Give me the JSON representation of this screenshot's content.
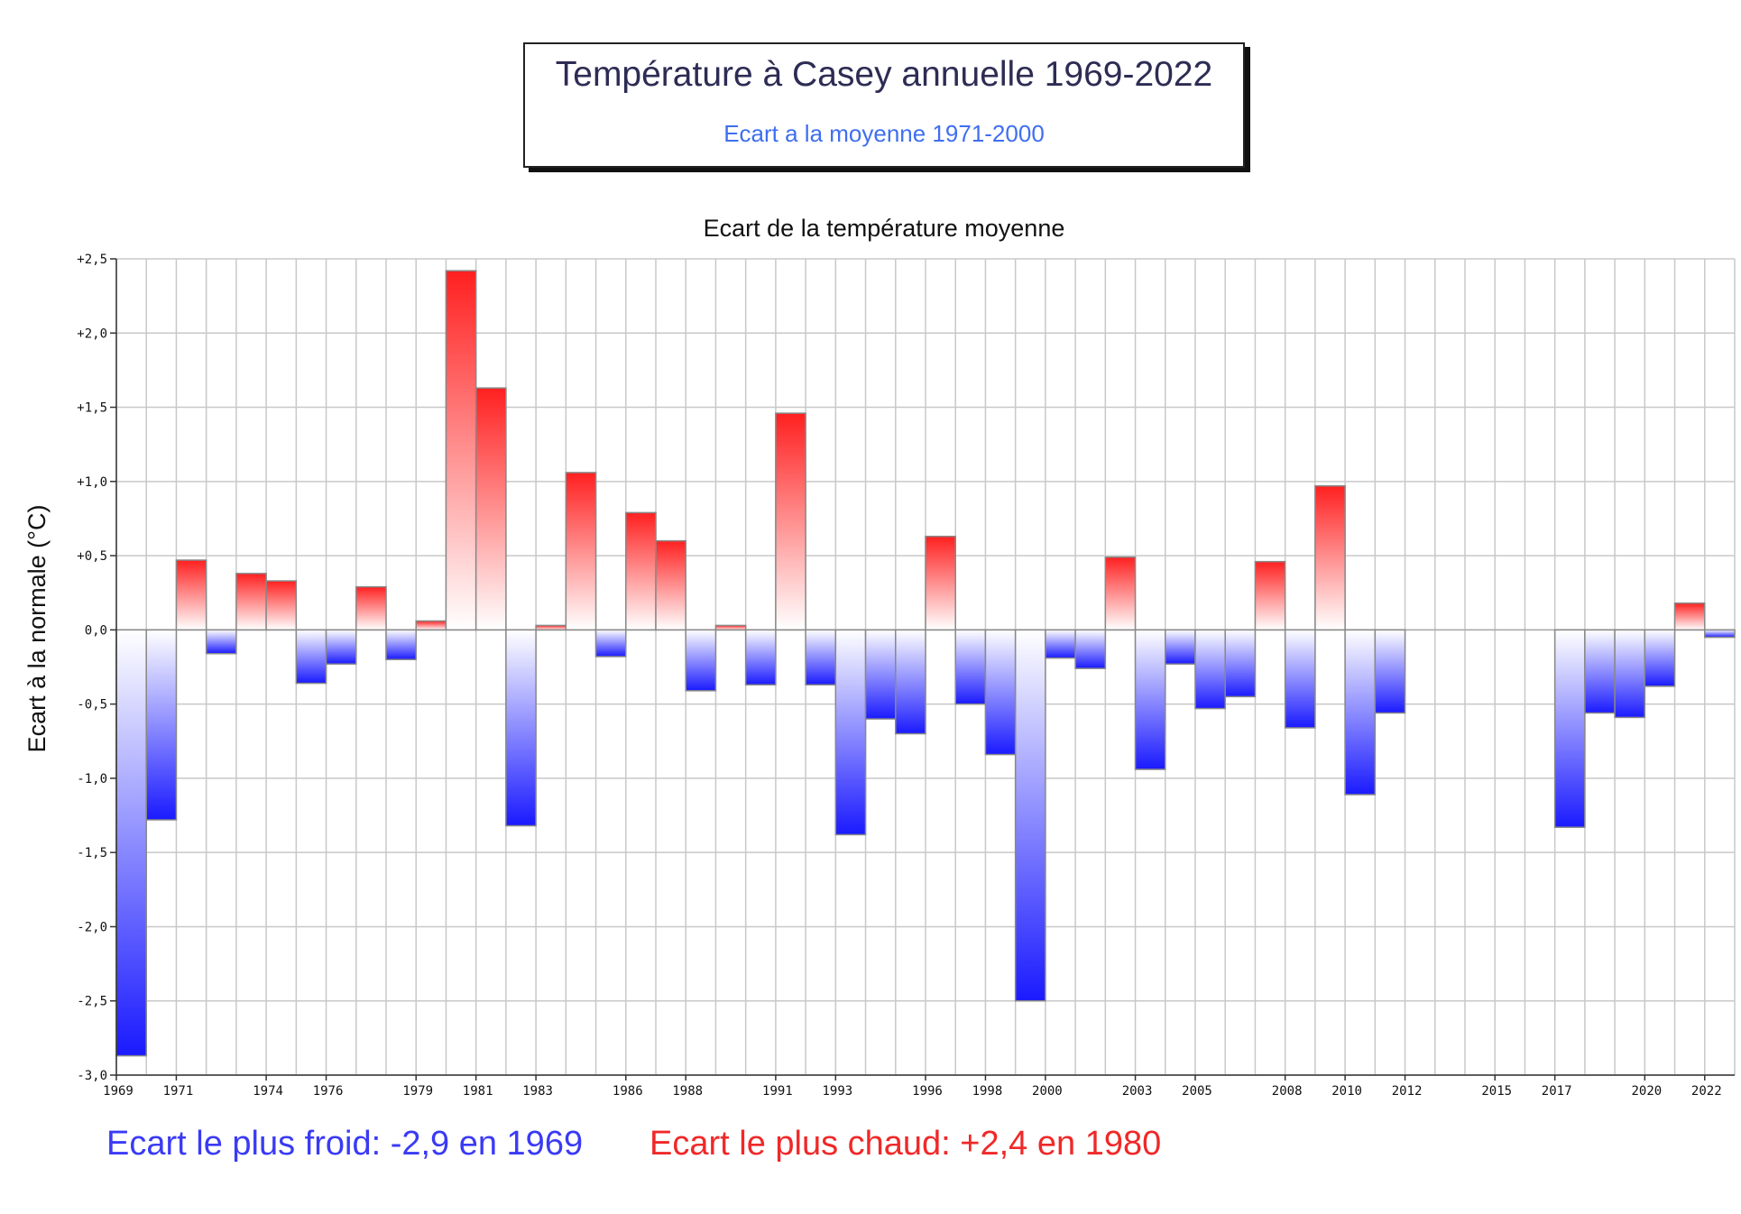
{
  "header": {
    "title": "Température à Casey annuelle 1969-2022",
    "subtitle": "Ecart a la moyenne 1971-2000"
  },
  "records": {
    "coldest": "Ecart le plus froid: -2,9 en 1969",
    "warmest": "Ecart le plus chaud: +2,4 en 1980"
  },
  "colors": {
    "warm": "#ff2020",
    "cold": "#1a1aff",
    "grid": "#c8c8c8",
    "bar_stroke": "#888888"
  },
  "chart_data": {
    "type": "bar",
    "title": "Ecart de la température moyenne",
    "ylabel": "Ecart à la normale (°C)",
    "xlabel": "",
    "ylim": [
      -3.0,
      2.5
    ],
    "yticks": [
      "+2,5",
      "+2,0",
      "+1,5",
      "+1,0",
      "+0,5",
      "0,0",
      "-0,5",
      "-1,0",
      "-1,5",
      "-2,0",
      "-2,5",
      "-3,0"
    ],
    "ytick_values": [
      2.5,
      2.0,
      1.5,
      1.0,
      0.5,
      0.0,
      -0.5,
      -1.0,
      -1.5,
      -2.0,
      -2.5,
      -3.0
    ],
    "xtick_labels": [
      "1969",
      "1971",
      "1974",
      "1976",
      "1979",
      "1981",
      "1983",
      "1986",
      "1988",
      "1991",
      "1993",
      "1996",
      "1998",
      "2000",
      "2003",
      "2005",
      "2008",
      "2010",
      "2012",
      "2015",
      "2017",
      "2020",
      "2022"
    ],
    "grid": true,
    "legend": "none",
    "years": [
      1969,
      1970,
      1971,
      1972,
      1973,
      1974,
      1975,
      1976,
      1977,
      1978,
      1979,
      1980,
      1981,
      1982,
      1983,
      1984,
      1985,
      1986,
      1987,
      1988,
      1989,
      1990,
      1991,
      1992,
      1993,
      1994,
      1995,
      1996,
      1997,
      1998,
      1999,
      2000,
      2001,
      2002,
      2003,
      2004,
      2005,
      2006,
      2007,
      2008,
      2009,
      2010,
      2011,
      2012,
      2013,
      2014,
      2015,
      2016,
      2017,
      2018,
      2019,
      2020,
      2021,
      2022
    ],
    "values": [
      -2.87,
      -1.28,
      0.47,
      -0.16,
      0.38,
      0.33,
      -0.36,
      -0.23,
      0.29,
      -0.2,
      0.06,
      2.42,
      1.63,
      -1.32,
      0.03,
      1.06,
      -0.18,
      0.79,
      0.6,
      -0.41,
      0.03,
      -0.37,
      1.46,
      -0.37,
      -1.38,
      -0.6,
      -0.7,
      0.63,
      -0.5,
      -0.84,
      -2.5,
      -0.19,
      -0.26,
      0.49,
      -0.94,
      -0.23,
      -0.53,
      -0.45,
      0.46,
      -0.66,
      0.97,
      -1.11,
      -0.56,
      null,
      null,
      null,
      null,
      null,
      -1.33,
      -0.56,
      -0.59,
      -0.38,
      0.18,
      -0.05
    ]
  }
}
